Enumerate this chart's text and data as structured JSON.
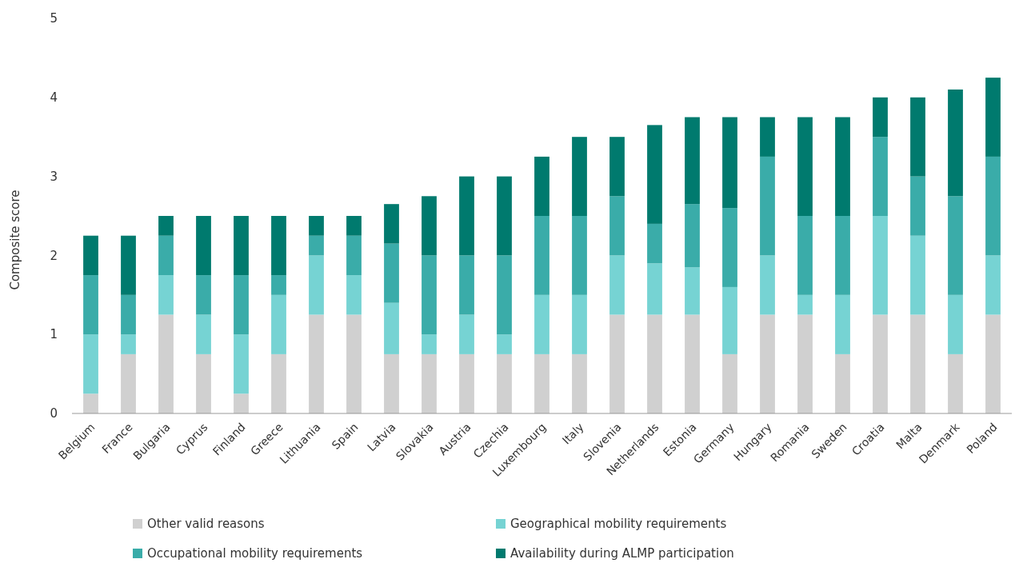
{
  "chart_data": {
    "type": "bar",
    "stacked": true,
    "ylabel": "Composite score",
    "ylim": [
      0,
      5
    ],
    "yticks": [
      0,
      1,
      2,
      3,
      4,
      5
    ],
    "grid": false,
    "legend": "bottom",
    "categories": [
      "Belgium",
      "France",
      "Bulgaria",
      "Cyprus",
      "Finland",
      "Greece",
      "Lithuania",
      "Spain",
      "Latvia",
      "Slovakia",
      "Austria",
      "Czechia",
      "Luxembourg",
      "Italy",
      "Slovenia",
      "Netherlands",
      "Estonia",
      "Germany",
      "Hungary",
      "Romania",
      "Sweden",
      "Croatia",
      "Malta",
      "Denmark",
      "Poland"
    ],
    "series": [
      {
        "name": "Other valid reasons",
        "color": "#d0d0d0",
        "values": [
          0.25,
          0.75,
          1.25,
          0.75,
          0.25,
          0.75,
          1.25,
          1.25,
          0.75,
          0.75,
          0.75,
          0.75,
          0.75,
          0.75,
          1.25,
          1.25,
          1.25,
          0.75,
          1.25,
          1.25,
          0.75,
          1.25,
          1.25,
          0.75,
          1.25
        ]
      },
      {
        "name": "Geographical mobility requirements",
        "color": "#76d3d3",
        "values": [
          0.75,
          0.25,
          0.5,
          0.5,
          0.75,
          0.75,
          0.75,
          0.5,
          0.65,
          0.25,
          0.5,
          0.25,
          0.75,
          0.75,
          0.75,
          0.65,
          0.6,
          0.85,
          0.75,
          0.25,
          0.75,
          1.25,
          1.0,
          0.75,
          0.75
        ]
      },
      {
        "name": "Occupational mobility requirements",
        "color": "#3aaca9",
        "values": [
          0.75,
          0.5,
          0.5,
          0.5,
          0.75,
          0.25,
          0.25,
          0.5,
          0.75,
          1.0,
          0.75,
          1.0,
          1.0,
          1.0,
          0.75,
          0.5,
          0.8,
          1.0,
          1.25,
          1.0,
          1.0,
          1.0,
          0.75,
          1.25,
          1.25
        ]
      },
      {
        "name": "Availability during ALMP participation",
        "color": "#007a6e",
        "values": [
          0.5,
          0.75,
          0.25,
          0.75,
          0.75,
          0.75,
          0.25,
          0.25,
          0.5,
          0.75,
          1.0,
          1.0,
          0.75,
          1.0,
          0.75,
          1.25,
          1.1,
          1.15,
          0.5,
          1.25,
          1.25,
          0.5,
          1.0,
          1.35,
          1.0
        ]
      }
    ]
  }
}
